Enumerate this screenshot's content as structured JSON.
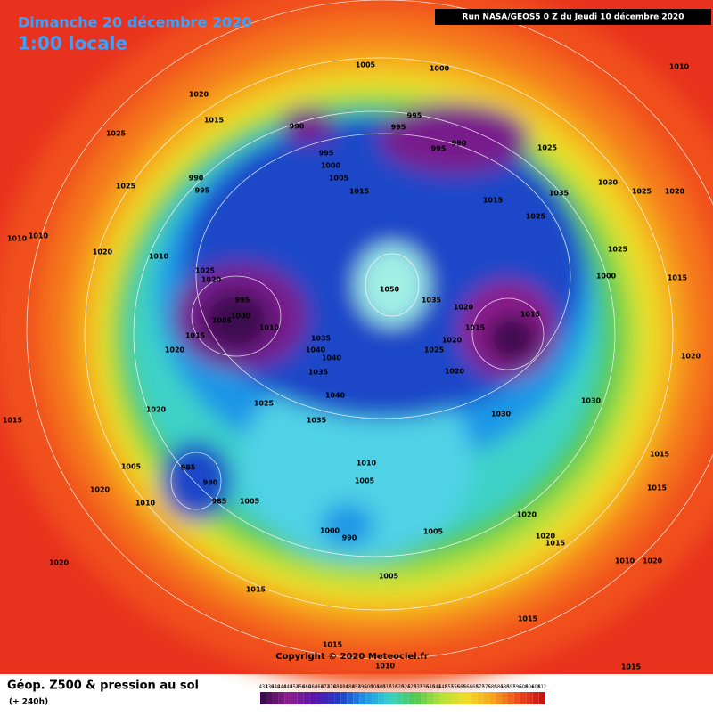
{
  "header": {
    "date": "Dimanche 20 décembre 2020",
    "time": "1:00 locale",
    "run": "Run NASA/GEOS5 0 Z du Jeudi 10 décembre 2020",
    "copyright": "Copyright © 2020 Meteociel.fr"
  },
  "footer": {
    "title": "Géop. Z500 & pression au sol",
    "lead": "(+ 240h)"
  },
  "scale": [
    432,
    436,
    440,
    444,
    448,
    452,
    456,
    460,
    464,
    468,
    472,
    476,
    480,
    484,
    488,
    492,
    496,
    500,
    504,
    508,
    512,
    516,
    520,
    524,
    528,
    532,
    536,
    540,
    544,
    548,
    552,
    556,
    560,
    564,
    568,
    572,
    576,
    580,
    584,
    588,
    592,
    596,
    600,
    604,
    608,
    612
  ],
  "labels": [
    1005,
    1000,
    1010,
    1020,
    1015,
    1025,
    995,
    995,
    990,
    990,
    995,
    995,
    1000,
    1005,
    1015,
    990,
    995,
    1025,
    1025,
    1035,
    1030,
    1025,
    1020,
    1015,
    1025,
    1010,
    1010,
    1020,
    1010,
    1025,
    1020,
    995,
    1000,
    1005,
    1010,
    1015,
    1020,
    1050,
    1035,
    1035,
    1040,
    1040,
    1035,
    1040,
    1035,
    1025,
    1020,
    1015,
    1015,
    1020,
    1025,
    1020,
    1030,
    1030,
    1020,
    1015,
    1005,
    985,
    990,
    1005,
    985,
    1020,
    1010,
    1010,
    1005,
    1000,
    990,
    1005,
    1005,
    1020,
    1020,
    1015,
    1015,
    1015,
    1020,
    1015,
    1015,
    1015,
    1010,
    1015,
    1020,
    1010,
    1020,
    1000,
    1015,
    1025
  ]
}
